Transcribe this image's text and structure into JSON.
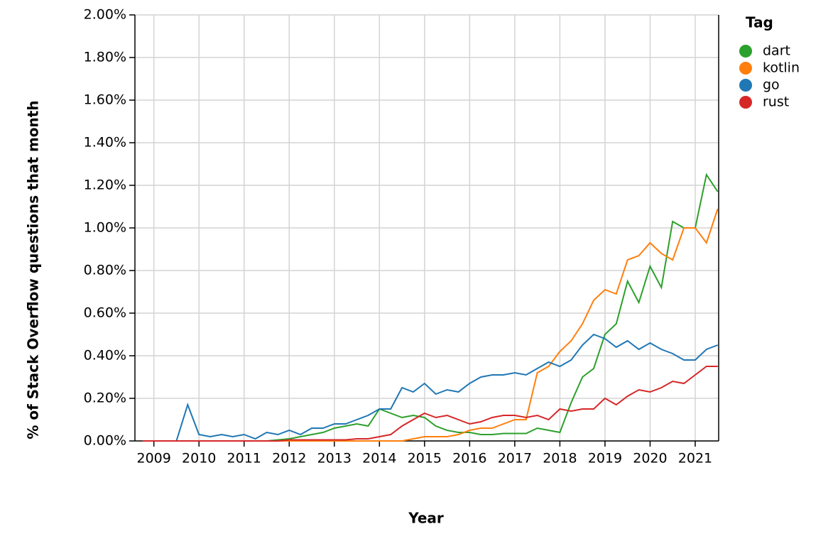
{
  "chart_data": {
    "type": "line",
    "x_label": "Year",
    "y_label": "% of Stack Overflow questions that month",
    "legend_title": "Tag",
    "legend_position": "top-right",
    "grid": true,
    "xlim": [
      2008.58,
      2021.52
    ],
    "xticks": [
      2009,
      2010,
      2011,
      2012,
      2013,
      2014,
      2015,
      2016,
      2017,
      2018,
      2019,
      2020,
      2021
    ],
    "ylim": [
      0,
      2
    ],
    "yticks": [
      {
        "value": 0,
        "label": "0.00%"
      },
      {
        "value": 0.2,
        "label": "0.20%"
      },
      {
        "value": 0.4,
        "label": "0.40%"
      },
      {
        "value": 0.6,
        "label": "0.60%"
      },
      {
        "value": 0.8,
        "label": "0.80%"
      },
      {
        "value": 1.0,
        "label": "1.00%"
      },
      {
        "value": 1.2,
        "label": "1.20%"
      },
      {
        "value": 1.4,
        "label": "1.40%"
      },
      {
        "value": 1.6,
        "label": "1.60%"
      },
      {
        "value": 1.8,
        "label": "1.80%"
      },
      {
        "value": 2.0,
        "label": "2.00%"
      }
    ],
    "x": [
      2008.75,
      2009,
      2009.25,
      2009.5,
      2009.75,
      2010,
      2010.25,
      2010.5,
      2010.75,
      2011,
      2011.25,
      2011.5,
      2011.75,
      2012,
      2012.25,
      2012.5,
      2012.75,
      2013,
      2013.25,
      2013.5,
      2013.75,
      2014,
      2014.25,
      2014.5,
      2014.75,
      2015,
      2015.25,
      2015.5,
      2015.75,
      2016,
      2016.25,
      2016.5,
      2016.75,
      2017,
      2017.25,
      2017.5,
      2017.75,
      2018,
      2018.25,
      2018.5,
      2018.75,
      2019,
      2019.25,
      2019.5,
      2019.75,
      2020,
      2020.25,
      2020.5,
      2020.75,
      2021,
      2021.25,
      2021.5
    ],
    "series": [
      {
        "name": "dart",
        "color": "#2ca02c",
        "values": [
          0,
          0,
          0,
          0,
          0,
          0,
          0,
          0,
          0,
          0,
          0,
          0,
          0.005,
          0.01,
          0.02,
          0.03,
          0.04,
          0.06,
          0.07,
          0.08,
          0.07,
          0.15,
          0.13,
          0.11,
          0.12,
          0.11,
          0.07,
          0.05,
          0.04,
          0.04,
          0.03,
          0.03,
          0.035,
          0.035,
          0.035,
          0.06,
          0.05,
          0.04,
          0.18,
          0.3,
          0.34,
          0.5,
          0.55,
          0.75,
          0.65,
          0.82,
          0.72,
          1.03,
          1.0,
          1.0,
          1.25,
          1.17
        ]
      },
      {
        "name": "kotlin",
        "color": "#ff7f0e",
        "values": [
          0,
          0,
          0,
          0,
          0,
          0,
          0,
          0,
          0,
          0,
          0,
          0,
          0,
          0,
          0,
          0,
          0,
          0,
          0,
          0,
          0,
          0,
          0,
          0,
          0.01,
          0.02,
          0.02,
          0.02,
          0.03,
          0.05,
          0.06,
          0.06,
          0.08,
          0.1,
          0.1,
          0.32,
          0.35,
          0.42,
          0.47,
          0.55,
          0.66,
          0.71,
          0.69,
          0.85,
          0.87,
          0.93,
          0.88,
          0.85,
          1.0,
          1.0,
          0.93,
          1.09
        ]
      },
      {
        "name": "go",
        "color": "#1f77b4",
        "values": [
          0,
          0,
          0,
          0,
          0.17,
          0.03,
          0.02,
          0.03,
          0.02,
          0.03,
          0.01,
          0.04,
          0.03,
          0.05,
          0.03,
          0.06,
          0.06,
          0.08,
          0.08,
          0.1,
          0.12,
          0.15,
          0.15,
          0.25,
          0.23,
          0.27,
          0.22,
          0.24,
          0.23,
          0.27,
          0.3,
          0.31,
          0.31,
          0.32,
          0.31,
          0.34,
          0.37,
          0.35,
          0.38,
          0.45,
          0.5,
          0.48,
          0.44,
          0.47,
          0.43,
          0.46,
          0.43,
          0.41,
          0.38,
          0.38,
          0.43,
          0.45
        ]
      },
      {
        "name": "rust",
        "color": "#d62728",
        "values": [
          0,
          0,
          0,
          0,
          0,
          0,
          0,
          0,
          0,
          0,
          0,
          0,
          0,
          0.005,
          0.005,
          0.005,
          0.005,
          0.005,
          0.005,
          0.01,
          0.01,
          0.02,
          0.03,
          0.07,
          0.1,
          0.13,
          0.11,
          0.12,
          0.1,
          0.08,
          0.09,
          0.11,
          0.12,
          0.12,
          0.11,
          0.12,
          0.1,
          0.15,
          0.14,
          0.15,
          0.15,
          0.2,
          0.17,
          0.21,
          0.24,
          0.23,
          0.25,
          0.28,
          0.27,
          0.31,
          0.35,
          0.35
        ]
      }
    ]
  }
}
